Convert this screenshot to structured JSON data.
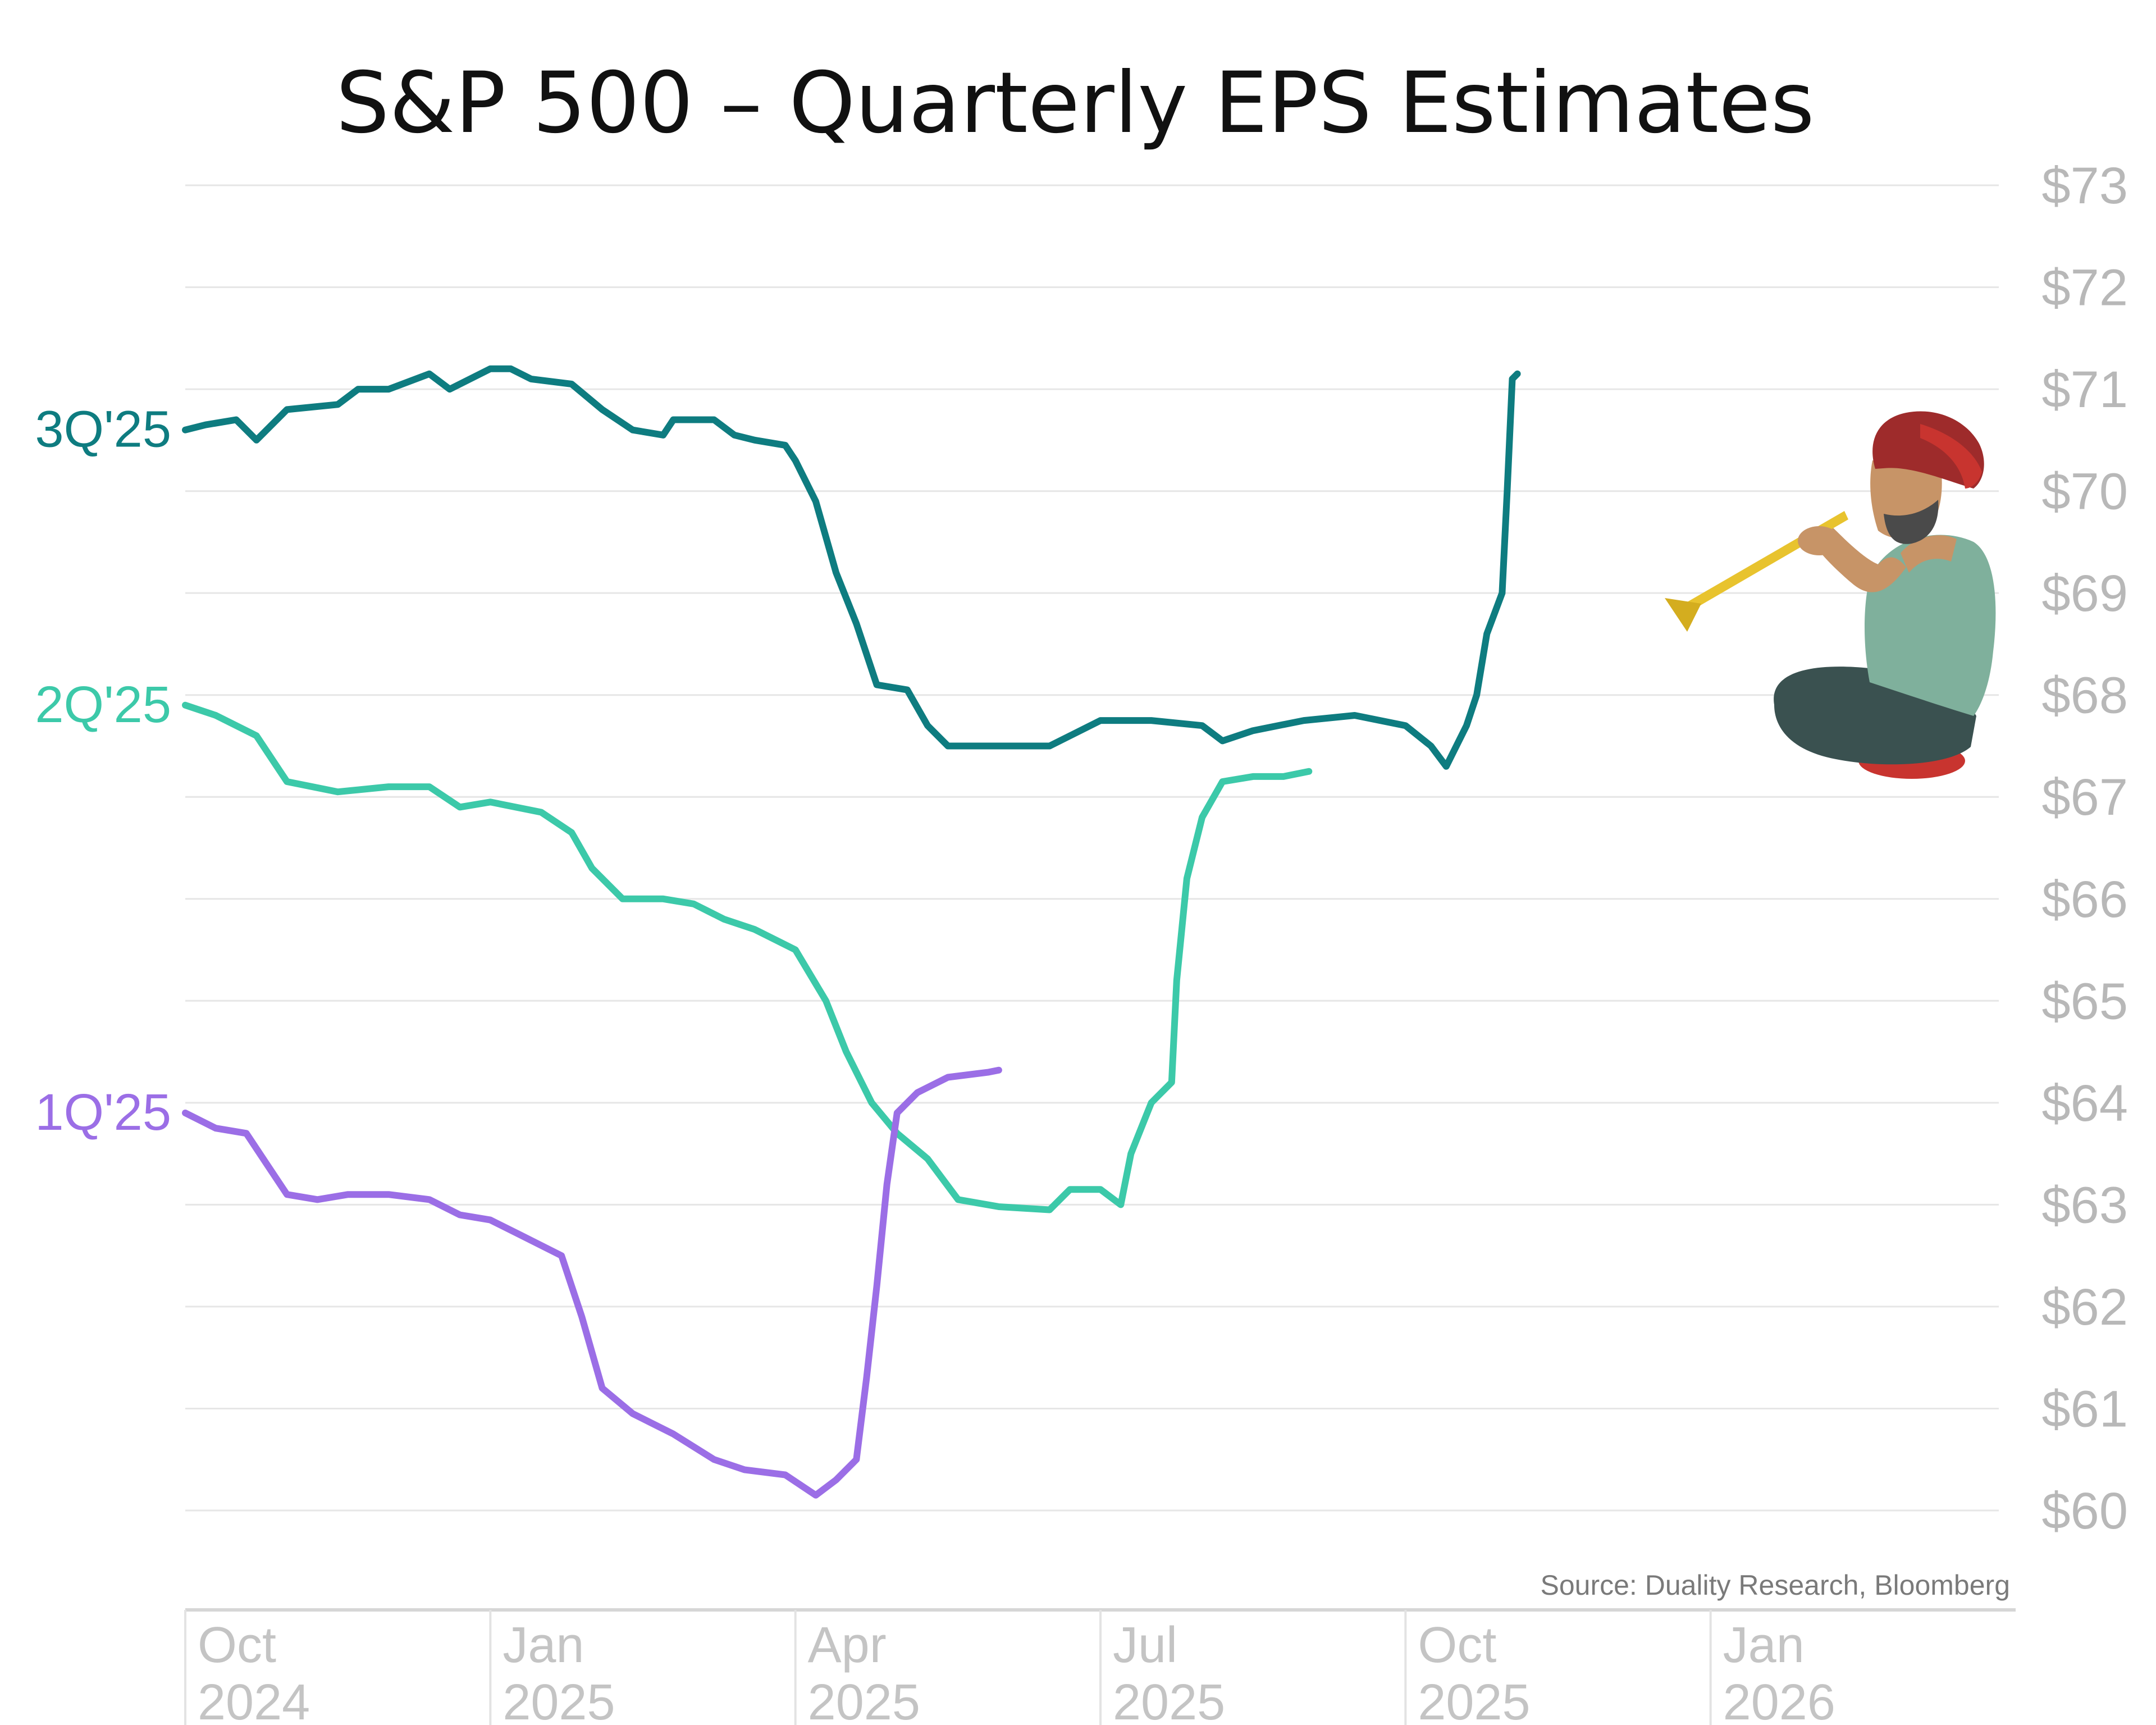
{
  "chart_data": {
    "type": "line",
    "title": "S&P 500 – Quarterly EPS Estimates",
    "source": "Source: Duality Research, Bloomberg",
    "xlabel": "",
    "ylabel": "",
    "ylim": [
      60,
      73
    ],
    "y_ticks": [
      60,
      61,
      62,
      63,
      64,
      65,
      66,
      67,
      68,
      69,
      70,
      71,
      72,
      73
    ],
    "y_tick_labels": [
      "$60",
      "$61",
      "$62",
      "$63",
      "$64",
      "$65",
      "$66",
      "$67",
      "$68",
      "$69",
      "$70",
      "$71",
      "$72",
      "$73"
    ],
    "xlim_months": [
      0,
      18
    ],
    "x_ticks": [
      {
        "month": 0,
        "line1": "Oct",
        "line2": "2024"
      },
      {
        "month": 3,
        "line1": "Jan",
        "line2": "2025"
      },
      {
        "month": 6,
        "line1": "Apr",
        "line2": "2025"
      },
      {
        "month": 9,
        "line1": "Jul",
        "line2": "2025"
      },
      {
        "month": 12,
        "line1": "Oct",
        "line2": "2025"
      },
      {
        "month": 15,
        "line1": "Jan",
        "line2": "2026"
      }
    ],
    "x_unit": "months since Oct 1, 2024",
    "series": [
      {
        "name": "3Q'25",
        "color": "#0e7c80",
        "points": [
          [
            0,
            70.6
          ],
          [
            0.2,
            70.65
          ],
          [
            0.5,
            70.7
          ],
          [
            0.7,
            70.5
          ],
          [
            1.0,
            70.8
          ],
          [
            1.5,
            70.85
          ],
          [
            1.7,
            71.0
          ],
          [
            2.0,
            71.0
          ],
          [
            2.4,
            71.15
          ],
          [
            2.6,
            71.0
          ],
          [
            3.0,
            71.2
          ],
          [
            3.2,
            71.2
          ],
          [
            3.4,
            71.1
          ],
          [
            3.8,
            71.05
          ],
          [
            4.1,
            70.8
          ],
          [
            4.4,
            70.6
          ],
          [
            4.7,
            70.55
          ],
          [
            4.8,
            70.7
          ],
          [
            5.2,
            70.7
          ],
          [
            5.4,
            70.55
          ],
          [
            5.6,
            70.5
          ],
          [
            5.9,
            70.45
          ],
          [
            6.0,
            70.3
          ],
          [
            6.2,
            69.9
          ],
          [
            6.4,
            69.2
          ],
          [
            6.6,
            68.7
          ],
          [
            6.8,
            68.1
          ],
          [
            7.1,
            68.05
          ],
          [
            7.3,
            67.7
          ],
          [
            7.5,
            67.5
          ],
          [
            8.0,
            67.5
          ],
          [
            8.5,
            67.5
          ],
          [
            9.0,
            67.75
          ],
          [
            9.5,
            67.75
          ],
          [
            10.0,
            67.7
          ],
          [
            10.2,
            67.55
          ],
          [
            10.5,
            67.65
          ],
          [
            11.0,
            67.75
          ],
          [
            11.5,
            67.8
          ],
          [
            12.0,
            67.7
          ],
          [
            12.25,
            67.5
          ],
          [
            12.4,
            67.3
          ],
          [
            12.6,
            67.7
          ],
          [
            12.7,
            68.0
          ],
          [
            12.8,
            68.6
          ],
          [
            12.95,
            69.0
          ],
          [
            13.0,
            70.0
          ],
          [
            13.05,
            71.1
          ],
          [
            13.1,
            71.15
          ]
        ]
      },
      {
        "name": "2Q'25",
        "color": "#3cc9a9",
        "points": [
          [
            0,
            67.9
          ],
          [
            0.3,
            67.8
          ],
          [
            0.7,
            67.6
          ],
          [
            1.0,
            67.15
          ],
          [
            1.5,
            67.05
          ],
          [
            2.0,
            67.1
          ],
          [
            2.4,
            67.1
          ],
          [
            2.7,
            66.9
          ],
          [
            3.0,
            66.95
          ],
          [
            3.5,
            66.85
          ],
          [
            3.8,
            66.65
          ],
          [
            4.0,
            66.3
          ],
          [
            4.3,
            66.0
          ],
          [
            4.7,
            66.0
          ],
          [
            5.0,
            65.95
          ],
          [
            5.3,
            65.8
          ],
          [
            5.6,
            65.7
          ],
          [
            6.0,
            65.5
          ],
          [
            6.3,
            65.0
          ],
          [
            6.5,
            64.5
          ],
          [
            6.75,
            64.0
          ],
          [
            7.0,
            63.7
          ],
          [
            7.3,
            63.45
          ],
          [
            7.6,
            63.05
          ],
          [
            8.0,
            62.98
          ],
          [
            8.5,
            62.95
          ],
          [
            8.7,
            63.15
          ],
          [
            9.0,
            63.15
          ],
          [
            9.2,
            63.0
          ],
          [
            9.3,
            63.5
          ],
          [
            9.5,
            64.0
          ],
          [
            9.7,
            64.2
          ],
          [
            9.75,
            65.2
          ],
          [
            9.85,
            66.2
          ],
          [
            10.0,
            66.8
          ],
          [
            10.2,
            67.15
          ],
          [
            10.5,
            67.2
          ],
          [
            10.8,
            67.2
          ],
          [
            11.05,
            67.25
          ]
        ]
      },
      {
        "name": "1Q'25",
        "color": "#9b6ee6",
        "points": [
          [
            0,
            63.9
          ],
          [
            0.3,
            63.75
          ],
          [
            0.6,
            63.7
          ],
          [
            0.8,
            63.4
          ],
          [
            1.0,
            63.1
          ],
          [
            1.3,
            63.05
          ],
          [
            1.6,
            63.1
          ],
          [
            2.0,
            63.1
          ],
          [
            2.4,
            63.05
          ],
          [
            2.7,
            62.9
          ],
          [
            3.0,
            62.85
          ],
          [
            3.3,
            62.7
          ],
          [
            3.7,
            62.5
          ],
          [
            3.9,
            61.9
          ],
          [
            4.1,
            61.2
          ],
          [
            4.4,
            60.95
          ],
          [
            4.8,
            60.75
          ],
          [
            5.2,
            60.5
          ],
          [
            5.5,
            60.4
          ],
          [
            5.9,
            60.35
          ],
          [
            6.2,
            60.15
          ],
          [
            6.4,
            60.3
          ],
          [
            6.6,
            60.5
          ],
          [
            6.7,
            61.3
          ],
          [
            6.8,
            62.2
          ],
          [
            6.9,
            63.2
          ],
          [
            7.0,
            63.9
          ],
          [
            7.2,
            64.1
          ],
          [
            7.5,
            64.25
          ],
          [
            7.9,
            64.3
          ],
          [
            8.0,
            64.32
          ]
        ]
      }
    ]
  },
  "illustration": {
    "subject": "seated-flute-player",
    "colors": {
      "turban": "#9e2b2b",
      "turban_band": "#c8342f",
      "skin": "#c79467",
      "beard": "#4a4a4a",
      "flute": "#e8c32e",
      "shirt": "#7fb09c",
      "pants": "#3a5150",
      "cushion": "#c8342f"
    }
  }
}
